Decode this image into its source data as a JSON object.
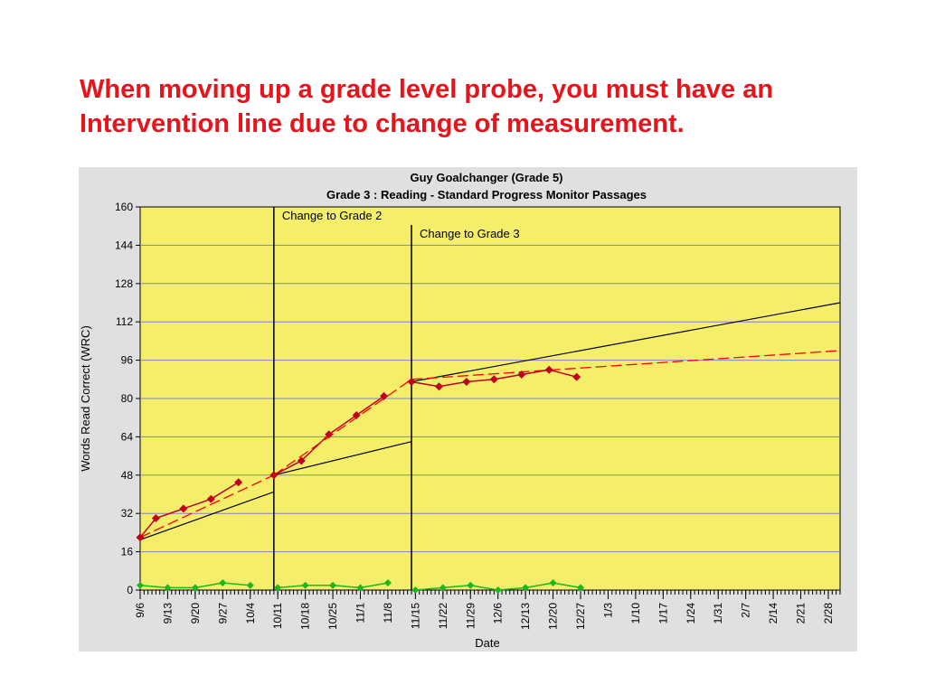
{
  "slide": {
    "title_line1": "When moving up a grade level probe, you must have an",
    "title_line2": "Intervention line due to change of measurement."
  },
  "colors": {
    "title": "#e8141b",
    "plot_bg": "#f4ee6a",
    "frame_bg": "#e0e0e0",
    "grid": "#7c86c8",
    "data": "#c0001f",
    "trend": "#ff0000",
    "aimline": "#000000",
    "errors": "#1bb81b"
  },
  "chart_data": {
    "type": "line",
    "title": "Guy Goalchanger (Grade 5)",
    "subtitle": "Grade 3 : Reading - Standard Progress Monitor Passages",
    "xlabel": "Date",
    "ylabel": "Words Read Correct (WRC)",
    "ylim": [
      0,
      160
    ],
    "yticks": [
      0,
      16,
      32,
      48,
      64,
      80,
      96,
      112,
      128,
      144,
      160
    ],
    "xlim": [
      "9/6",
      "3/3"
    ],
    "xticks": [
      "9/6",
      "9/13",
      "9/20",
      "9/27",
      "10/4",
      "10/11",
      "10/18",
      "10/25",
      "11/1",
      "11/8",
      "11/15",
      "11/22",
      "11/29",
      "12/6",
      "12/13",
      "12/20",
      "12/27",
      "1/3",
      "1/10",
      "1/17",
      "1/24",
      "1/31",
      "2/7",
      "2/14",
      "2/21",
      "2/28"
    ],
    "grid": true,
    "phase_changes": [
      {
        "date": "10/10",
        "label": "Change to Grade 2"
      },
      {
        "date": "11/14",
        "label": "Change to Grade 3"
      }
    ],
    "series": [
      {
        "kind": "data",
        "points": [
          {
            "x": "9/6",
            "y": 22
          },
          {
            "x": "9/10",
            "y": 30
          },
          {
            "x": "9/17",
            "y": 34
          },
          {
            "x": "9/24",
            "y": 38
          },
          {
            "x": "10/1",
            "y": 45
          },
          {
            "x": "10/10",
            "y": 48
          },
          {
            "x": "10/17",
            "y": 54
          },
          {
            "x": "10/24",
            "y": 65
          },
          {
            "x": "10/31",
            "y": 73
          },
          {
            "x": "11/7",
            "y": 81
          },
          {
            "x": "11/14",
            "y": 87
          },
          {
            "x": "11/21",
            "y": 85
          },
          {
            "x": "11/28",
            "y": 87
          },
          {
            "x": "12/5",
            "y": 88
          },
          {
            "x": "12/12",
            "y": 90
          },
          {
            "x": "12/19",
            "y": 92
          },
          {
            "x": "12/26",
            "y": 89
          }
        ]
      },
      {
        "kind": "errors",
        "points": [
          {
            "x": "9/6",
            "y": 2
          },
          {
            "x": "9/13",
            "y": 1
          },
          {
            "x": "9/20",
            "y": 1
          },
          {
            "x": "9/27",
            "y": 3
          },
          {
            "x": "10/4",
            "y": 2
          },
          {
            "x": "10/11",
            "y": 1
          },
          {
            "x": "10/18",
            "y": 2
          },
          {
            "x": "10/25",
            "y": 2
          },
          {
            "x": "11/1",
            "y": 1
          },
          {
            "x": "11/8",
            "y": 3
          },
          {
            "x": "11/15",
            "y": 0
          },
          {
            "x": "11/22",
            "y": 1
          },
          {
            "x": "11/29",
            "y": 2
          },
          {
            "x": "12/6",
            "y": 0
          },
          {
            "x": "12/13",
            "y": 1
          },
          {
            "x": "12/20",
            "y": 3
          },
          {
            "x": "12/27",
            "y": 1
          }
        ]
      },
      {
        "kind": "aimline",
        "segments": [
          [
            {
              "x": "9/6",
              "y": 21
            },
            {
              "x": "10/10",
              "y": 41
            }
          ],
          [
            {
              "x": "10/10",
              "y": 48
            },
            {
              "x": "11/14",
              "y": 62
            }
          ],
          [
            {
              "x": "11/14",
              "y": 87
            },
            {
              "x": "3/3",
              "y": 120
            }
          ]
        ]
      },
      {
        "kind": "trend",
        "segments": [
          [
            {
              "x": "9/6",
              "y": 22
            },
            {
              "x": "10/10",
              "y": 48
            }
          ],
          [
            {
              "x": "10/10",
              "y": 48
            },
            {
              "x": "11/14",
              "y": 88
            }
          ],
          [
            {
              "x": "11/14",
              "y": 88
            },
            {
              "x": "3/3",
              "y": 100
            }
          ]
        ]
      }
    ]
  }
}
